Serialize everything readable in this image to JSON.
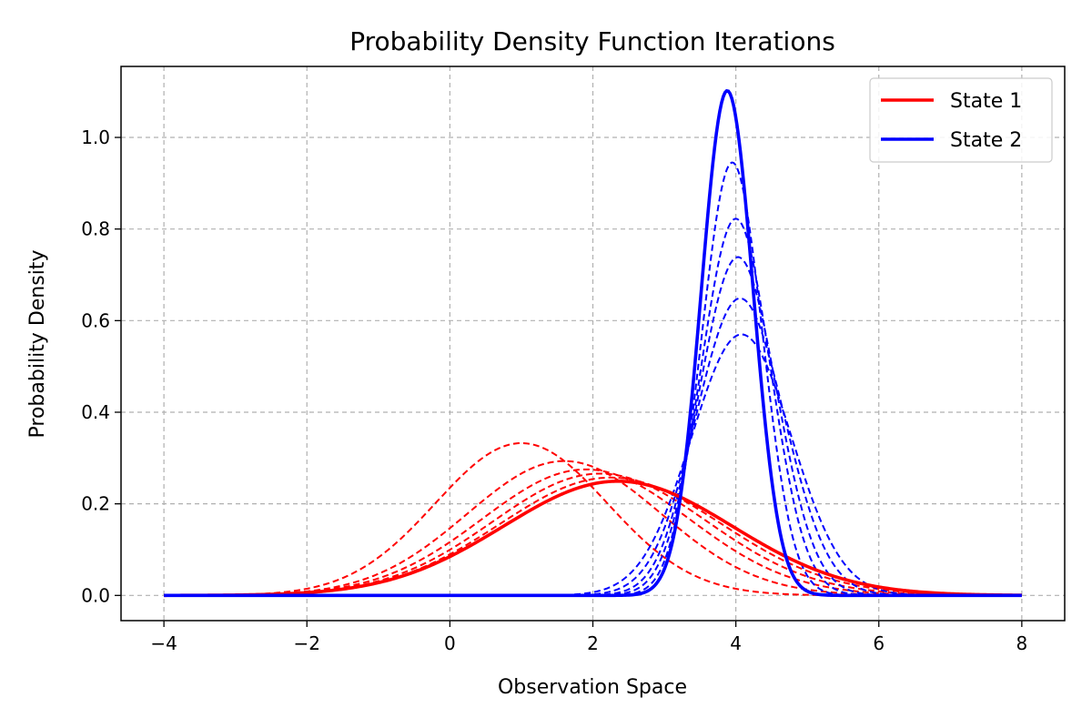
{
  "chart_data": {
    "type": "line",
    "title": "Probability Density Function Iterations",
    "xlabel": "Observation Space",
    "ylabel": "Probability Density",
    "xlim": [
      -4.6,
      8.6
    ],
    "ylim": [
      -0.055,
      1.155
    ],
    "x_ticks": [
      -4,
      -2,
      0,
      2,
      4,
      6,
      8
    ],
    "y_ticks": [
      0.0,
      0.2,
      0.4,
      0.6,
      0.8,
      1.0
    ],
    "grid": true,
    "legend_position": "top-right",
    "x_range": [
      -4,
      8
    ],
    "series": [
      {
        "name": "State 1",
        "color": "#ff0000",
        "final": {
          "mean": 2.35,
          "std": 1.6
        },
        "iterations": [
          {
            "mean": 1.0,
            "std": 1.2
          },
          {
            "mean": 1.6,
            "std": 1.36
          },
          {
            "mean": 1.9,
            "std": 1.45
          },
          {
            "mean": 2.1,
            "std": 1.5
          },
          {
            "mean": 2.25,
            "std": 1.55
          }
        ]
      },
      {
        "name": "State 2",
        "color": "#0000ff",
        "final": {
          "mean": 3.88,
          "std": 0.362
        },
        "iterations": [
          {
            "mean": 3.95,
            "std": 0.422
          },
          {
            "mean": 4.0,
            "std": 0.485
          },
          {
            "mean": 4.03,
            "std": 0.54
          },
          {
            "mean": 4.06,
            "std": 0.615
          },
          {
            "mean": 4.08,
            "std": 0.7
          }
        ]
      }
    ]
  }
}
